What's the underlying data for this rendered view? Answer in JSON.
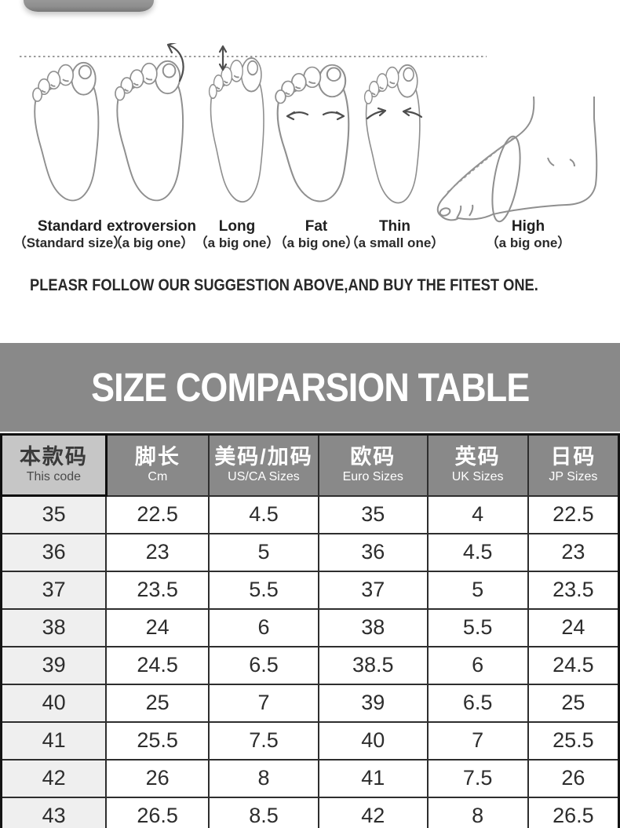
{
  "suggestion_text": "PLEASR FOLLOW OUR SUGGESTION ABOVE,AND BUY THE FITEST ONE.",
  "foot_types": [
    {
      "name": "Standard",
      "note": "（Standard size）"
    },
    {
      "name": "extroversion",
      "note": "（a big one）"
    },
    {
      "name": "Long",
      "note": "（a big one）"
    },
    {
      "name": "Fat",
      "note": "（a big one）"
    },
    {
      "name": "Thin",
      "note": "（a small one）"
    },
    {
      "name": "High",
      "note": "（a big one）"
    }
  ],
  "chart_data": {
    "type": "table",
    "title": "SIZE COMPARSION TABLE",
    "columns": [
      {
        "zh": "本款码",
        "en": "This code"
      },
      {
        "zh": "脚长",
        "en": "Cm"
      },
      {
        "zh": "美码/加码",
        "en": "US/CA Sizes"
      },
      {
        "zh": "欧码",
        "en": "Euro Sizes"
      },
      {
        "zh": "英码",
        "en": "UK Sizes"
      },
      {
        "zh": "日码",
        "en": "JP Sizes"
      }
    ],
    "rows": [
      [
        "35",
        "22.5",
        "4.5",
        "35",
        "4",
        "22.5"
      ],
      [
        "36",
        "23",
        "5",
        "36",
        "4.5",
        "23"
      ],
      [
        "37",
        "23.5",
        "5.5",
        "37",
        "5",
        "23.5"
      ],
      [
        "38",
        "24",
        "6",
        "38",
        "5.5",
        "24"
      ],
      [
        "39",
        "24.5",
        "6.5",
        "38.5",
        "6",
        "24.5"
      ],
      [
        "40",
        "25",
        "7",
        "39",
        "6.5",
        "25"
      ],
      [
        "41",
        "25.5",
        "7.5",
        "40",
        "7",
        "25.5"
      ],
      [
        "42",
        "26",
        "8",
        "41",
        "7.5",
        "26"
      ],
      [
        "43",
        "26.5",
        "8.5",
        "42",
        "8",
        "26.5"
      ]
    ]
  },
  "colors": {
    "band_gray": "#898989",
    "header_light_cell": "#c6c6c6",
    "first_column_bg": "#efefef",
    "table_border": "#141414"
  }
}
